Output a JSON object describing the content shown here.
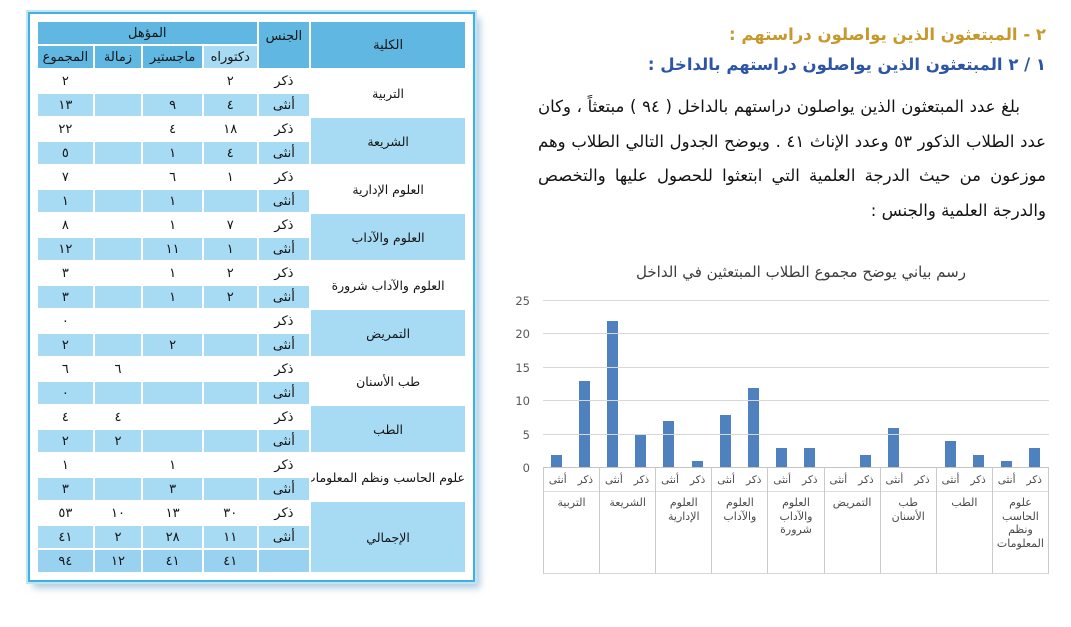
{
  "headings": {
    "section": "٢ - المبتعثون الذين يواصلون دراستهم :",
    "subsection": "١ / ٢ المبتعثون الذين يواصلون دراستهم بالداخل :"
  },
  "paragraph": {
    "text": "بلغ عدد المبتعثون الذين يواصلون دراستهم بالداخل ( ٩٤ ) مبتعثاً ، وكان عدد الطلاب الذكور ٥٣ وعدد الإناث ٤١ . ويوضح الجدول التالي الطلاب وهم موزعون من حيث الدرجة العلمية التي ابتعثوا للحصول عليها والتخصص والدرجة العلمية والجنس :"
  },
  "table": {
    "headers": {
      "college": "الكلية",
      "gender": "الجنس",
      "qualification": "المؤهل",
      "doctorate": "دكتوراه",
      "masters": "ماجستير",
      "fellowship": "زمالة",
      "total": "المجموع"
    },
    "gender_male": "ذكر",
    "gender_female": "أنثى",
    "grand_label": "الإجمالي",
    "rows": [
      {
        "college": "التربية",
        "male": [
          "٢",
          "",
          "",
          "٢"
        ],
        "female": [
          "٤",
          "٩",
          "",
          "١٣"
        ]
      },
      {
        "college": "الشريعة",
        "male": [
          "١٨",
          "٤",
          "",
          "٢٢"
        ],
        "female": [
          "٤",
          "١",
          "",
          "٥"
        ]
      },
      {
        "college": "العلوم الإدارية",
        "male": [
          "١",
          "٦",
          "",
          "٧"
        ],
        "female": [
          "",
          "١",
          "",
          "١"
        ]
      },
      {
        "college": "العلوم والآداب",
        "male": [
          "٧",
          "١",
          "",
          "٨"
        ],
        "female": [
          "١",
          "١١",
          "",
          "١٢"
        ]
      },
      {
        "college": "العلوم والآداب شرورة",
        "male": [
          "٢",
          "١",
          "",
          "٣"
        ],
        "female": [
          "٢",
          "١",
          "",
          "٣"
        ]
      },
      {
        "college": "التمريض",
        "male": [
          "",
          "",
          "",
          "٠"
        ],
        "female": [
          "",
          "٢",
          "",
          "٢"
        ]
      },
      {
        "college": "طب الأسنان",
        "male": [
          "",
          "",
          "٦",
          "٦"
        ],
        "female": [
          "",
          "",
          "",
          "٠"
        ]
      },
      {
        "college": "الطب",
        "male": [
          "",
          "",
          "٤",
          "٤"
        ],
        "female": [
          "",
          "",
          "٢",
          "٢"
        ]
      },
      {
        "college": "علوم الحاسب ونظم المعلومات",
        "male": [
          "",
          "١",
          "",
          "١"
        ],
        "female": [
          "",
          "٣",
          "",
          "٣"
        ]
      }
    ],
    "grand": {
      "male": [
        "٣٠",
        "١٣",
        "١٠",
        "٥٣"
      ],
      "female": [
        "١١",
        "٢٨",
        "٢",
        "٤١"
      ],
      "total": [
        "٤١",
        "٤١",
        "١٢",
        "٩٤"
      ]
    }
  },
  "chart_data": {
    "type": "bar",
    "title": "رسم بياني يوضح مجموع الطلاب المبتعثين في الداخل",
    "categories": [
      "التربية",
      "الشريعة",
      "العلوم الإدارية",
      "العلوم والآداب",
      "العلوم والآداب شرورة",
      "التمريض",
      "طب الأسنان",
      "الطب",
      "علوم الحاسب ونظم المعلومات"
    ],
    "series": [
      {
        "name": "ذكر",
        "values": [
          2,
          22,
          7,
          8,
          3,
          0,
          6,
          4,
          1
        ]
      },
      {
        "name": "أنثى",
        "values": [
          13,
          5,
          1,
          12,
          3,
          2,
          0,
          2,
          3
        ]
      }
    ],
    "sub_labels_visual": [
      "أنثى",
      "ذكر"
    ],
    "ylabel": "",
    "xlabel": "",
    "ylim": [
      0,
      25
    ],
    "yticks": [
      0,
      5,
      10,
      15,
      20,
      25
    ],
    "grid": true,
    "legend": "none",
    "bar_color": "#4E81BD"
  },
  "colors": {
    "table_header_blue": "#60B7E2",
    "table_light_blue": "#A7DAF3",
    "table_deep_blue": "#99D2F0",
    "frame_blue": "#43AEE4",
    "bar_blue": "#4E81BD",
    "heading_gold": "#C6992B",
    "heading_blue": "#2C55A5"
  }
}
